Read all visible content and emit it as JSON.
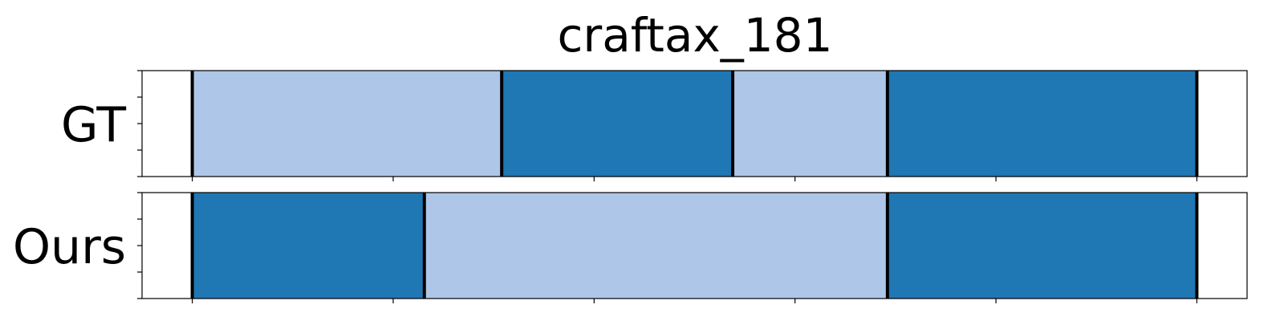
{
  "chart_data": {
    "type": "bar",
    "title": "craftax_181",
    "xlim": [
      -0.05,
      1.05
    ],
    "colors": {
      "light": "#aec7e8",
      "dark": "#1f77b4",
      "boundary": "#000000"
    },
    "rows": [
      {
        "label": "GT",
        "segments": [
          {
            "start": 0.0,
            "end": 0.308,
            "class": "light"
          },
          {
            "start": 0.308,
            "end": 0.538,
            "class": "dark"
          },
          {
            "start": 0.538,
            "end": 0.692,
            "class": "light"
          },
          {
            "start": 0.692,
            "end": 1.0,
            "class": "dark"
          }
        ]
      },
      {
        "label": "Ours",
        "segments": [
          {
            "start": 0.0,
            "end": 0.231,
            "class": "dark"
          },
          {
            "start": 0.231,
            "end": 0.692,
            "class": "light"
          },
          {
            "start": 0.692,
            "end": 1.0,
            "class": "dark"
          }
        ]
      }
    ],
    "x_ticks": [
      0.0,
      0.2,
      0.4,
      0.6,
      0.8,
      1.0
    ],
    "y_ticks_per_panel": 5,
    "x_tick_labels_shown": false,
    "y_tick_labels_shown": false,
    "grid": false,
    "legend": "none"
  }
}
